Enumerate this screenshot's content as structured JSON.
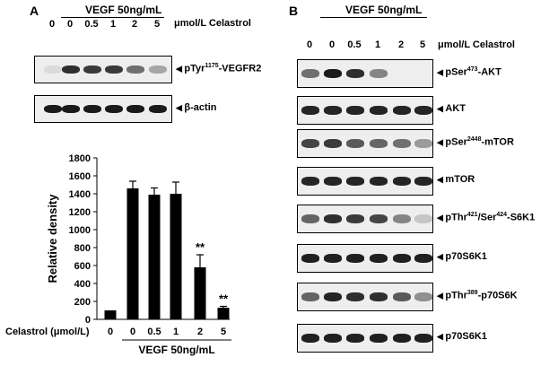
{
  "panel_a": {
    "letter": "A",
    "treatment_header": "VEGF 50ng/mL",
    "lanes": [
      "0",
      "0",
      "0.5",
      "1",
      "2",
      "5"
    ],
    "unit": "μmol/L Celastrol",
    "blots": [
      {
        "label_pre": "pTyr",
        "label_sup": "1175",
        "label_post": "-VEGFR2",
        "intensity": [
          0.05,
          0.85,
          0.8,
          0.8,
          0.55,
          0.3
        ]
      },
      {
        "label_pre": "β-actin",
        "label_sup": "",
        "label_post": "",
        "intensity": [
          0.95,
          0.95,
          0.95,
          0.95,
          0.95,
          0.95
        ]
      }
    ]
  },
  "panel_b": {
    "letter": "B",
    "treatment_header": "VEGF 50ng/mL",
    "lanes": [
      "0",
      "0",
      "0.5",
      "1",
      "2",
      "5"
    ],
    "unit": "μmol/L Celastrol",
    "blots": [
      {
        "label_pre": "pSer",
        "label_sup": "473",
        "label_post": "-AKT",
        "intensity": [
          0.55,
          0.95,
          0.85,
          0.45,
          0.0,
          0.0
        ]
      },
      {
        "label_pre": "AKT",
        "label_sup": "",
        "label_post": "",
        "intensity": [
          0.9,
          0.9,
          0.9,
          0.9,
          0.9,
          0.9
        ]
      },
      {
        "label_pre": "pSer",
        "label_sup": "2448",
        "label_post": "-mTOR",
        "intensity": [
          0.75,
          0.8,
          0.65,
          0.6,
          0.55,
          0.35
        ]
      },
      {
        "label_pre": "mTOR",
        "label_sup": "",
        "label_post": "",
        "intensity": [
          0.9,
          0.9,
          0.9,
          0.9,
          0.9,
          0.9
        ]
      },
      {
        "label_pre": "pThr",
        "label_sup": "421",
        "label_post": "/Ser",
        "label_sup2": "424",
        "label_post2": "-S6K1",
        "intensity": [
          0.6,
          0.85,
          0.8,
          0.75,
          0.45,
          0.15
        ]
      },
      {
        "label_pre": "p70S6K1",
        "label_sup": "",
        "label_post": "",
        "intensity": [
          0.92,
          0.92,
          0.92,
          0.92,
          0.92,
          0.92
        ]
      },
      {
        "label_pre": "pThr",
        "label_sup": "389",
        "label_post": "-p70S6K",
        "intensity": [
          0.6,
          0.9,
          0.85,
          0.85,
          0.65,
          0.4
        ]
      },
      {
        "label_pre": "p70S6K1",
        "label_sup": "",
        "label_post": "",
        "intensity": [
          0.92,
          0.92,
          0.92,
          0.92,
          0.92,
          0.92
        ]
      }
    ]
  },
  "chart_data": {
    "type": "bar",
    "ylabel": "Relative density",
    "ylim": [
      0,
      1800
    ],
    "yticks": [
      0,
      200,
      400,
      600,
      800,
      1000,
      1200,
      1400,
      1600,
      1800
    ],
    "x_axis_label": "Celastrol (μmol/L)",
    "categories": [
      "0",
      "0",
      "0.5",
      "1",
      "2",
      "5"
    ],
    "values": [
      100,
      1460,
      1390,
      1400,
      580,
      130
    ],
    "errors": [
      0,
      80,
      75,
      130,
      140,
      15
    ],
    "significance": [
      "",
      "",
      "",
      "",
      "**",
      "**"
    ],
    "group_label": "VEGF 50ng/mL",
    "bar_color": "#000000"
  }
}
